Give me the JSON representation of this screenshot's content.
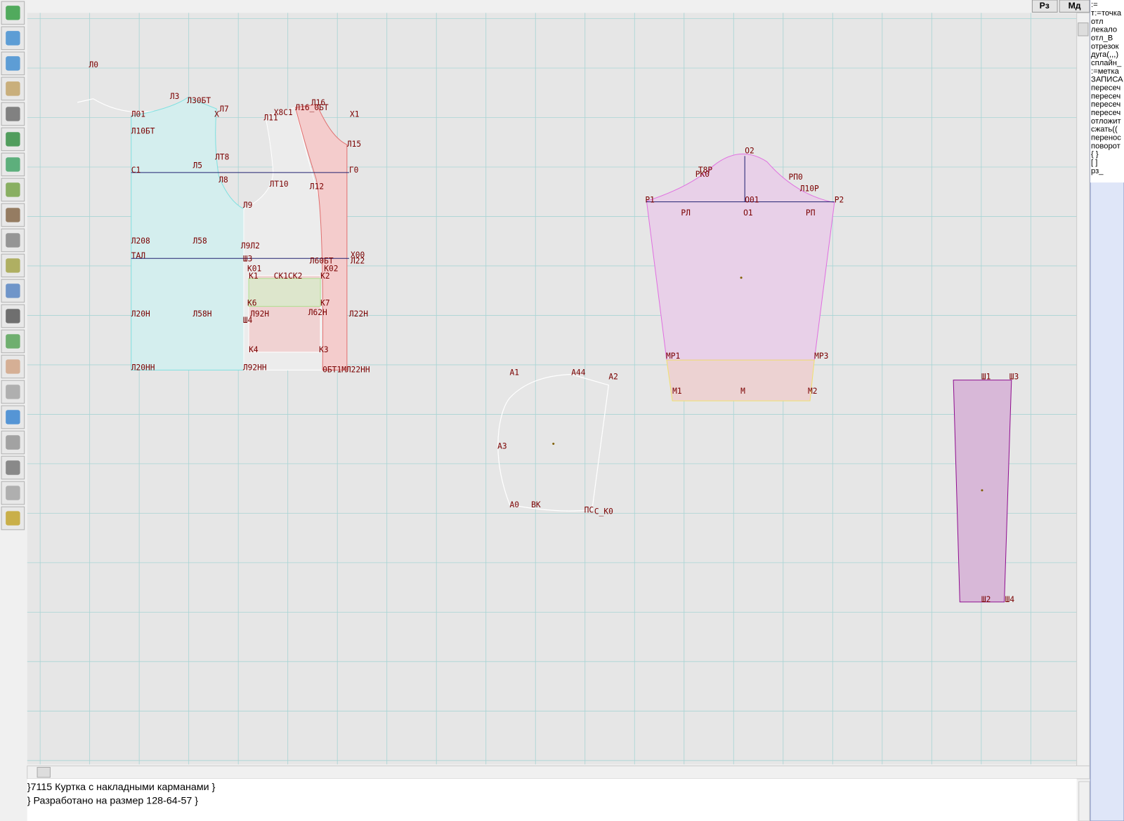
{
  "header": {
    "buttons": [
      "Рз",
      "Мд"
    ]
  },
  "right_panel": {
    "lines": [
      ":=",
      "т:=точка",
      "отл",
      "лекало",
      "отл_В",
      "отрезок",
      "дуга(,,,)",
      "сплайн_",
      ":=метка",
      "ЗАПИСА",
      "пересеч",
      "пересеч",
      "пересеч",
      "пересеч",
      "отложит",
      "сжать((",
      "перенос",
      "поворот",
      "{ }",
      "[ ]",
      "рз_"
    ]
  },
  "canvas": {
    "labels": [
      "Л0",
      "Л3",
      "Л30БТ",
      "Л7",
      "Х",
      "Л01",
      "Л10БТ",
      "ЛТ8",
      "Л5",
      "С1",
      "Л8",
      "Л9",
      "ЛТ10",
      "Л11",
      "Х8С1",
      "Л16",
      "Л16_0БТ",
      "Х1",
      "Л15",
      "Г0",
      "Л12",
      "Л208",
      "Л58",
      "Л9Л2",
      "ТАЛ",
      "Ш3",
      "К01",
      "К1",
      "СК1СК2",
      "К2",
      "К02",
      "Х00",
      "Л22",
      "Л60БТ",
      "К6",
      "К7",
      "Л20Н",
      "Л58Н",
      "Л92Н",
      "Л62Н",
      "Л22Н",
      "Ш4",
      "К4",
      "К3",
      "Л20НН",
      "Л92НН",
      "0БТ1М",
      "Л22НН",
      "О2",
      "Т8Р",
      "РК0",
      "РП0",
      "Л10Р",
      "Р1",
      "Р2",
      "О01",
      "РЛ",
      "О1",
      "РП",
      "МР1",
      "МР3",
      "М1",
      "М",
      "М2",
      "А1",
      "А44",
      "А2",
      "А3",
      "А0",
      "ВК",
      "ПС",
      "С_К0",
      "Ш1",
      "Ш3",
      "Ш2",
      "Ш4"
    ]
  },
  "status": {
    "lines": [
      "}7115 Куртка с накладными карманами }",
      "} Разработано на размер  128-64-57 }"
    ]
  }
}
